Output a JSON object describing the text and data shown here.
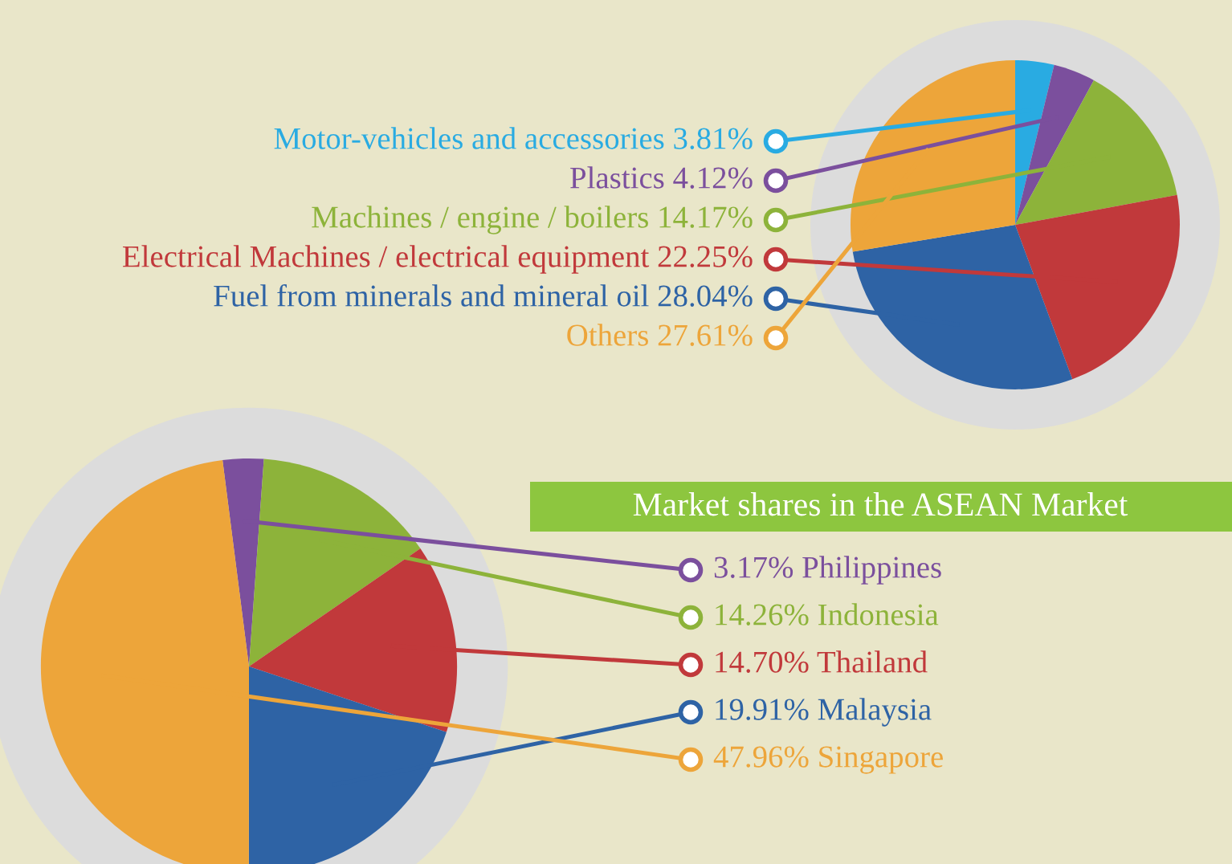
{
  "chart_data": [
    {
      "type": "pie",
      "categories": [
        "Motor-vehicles and accessories",
        "Plastics",
        "Machines / engine / boilers",
        "Electrical Machines / electrical equipment",
        "Fuel from minerals and mineral oil",
        "Others"
      ],
      "values": [
        3.81,
        4.12,
        14.17,
        22.25,
        28.04,
        27.61
      ],
      "value_labels": [
        "3.81%",
        "4.12%",
        "14.17%",
        "22.25%",
        "28.04%",
        "27.61%"
      ],
      "colors": [
        "#29abe2",
        "#7b4f9d",
        "#8db33a",
        "#c1393b",
        "#2e63a5",
        "#eda53a"
      ]
    },
    {
      "type": "pie",
      "title": "Market shares in the ASEAN Market",
      "categories": [
        "Philippines",
        "Indonesia",
        "Thailand",
        "Malaysia",
        "Singapore"
      ],
      "values": [
        3.17,
        14.26,
        14.7,
        19.91,
        47.96
      ],
      "value_labels": [
        "3.17%",
        "14.26%",
        "14.70%",
        "19.91%",
        "47.96%"
      ],
      "colors": [
        "#7b4f9d",
        "#8db33a",
        "#c1393b",
        "#2e63a5",
        "#eda53a"
      ]
    }
  ]
}
